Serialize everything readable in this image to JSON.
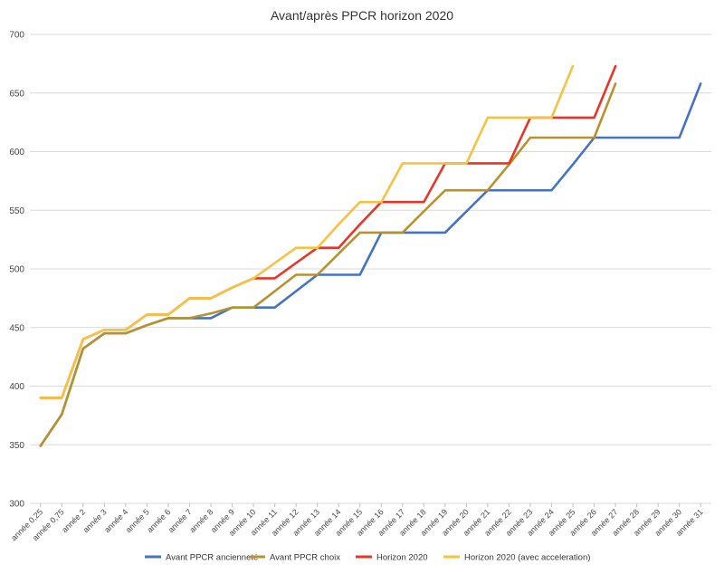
{
  "chart_data": {
    "type": "line",
    "title": "Avant/après PPCR horizon 2020",
    "xlabel": "",
    "ylabel": "",
    "ylim": [
      300,
      700
    ],
    "yticks": [
      "300",
      "350",
      "400",
      "450",
      "500",
      "550",
      "600",
      "650",
      "700"
    ],
    "grid": "horizontal",
    "legend_position": "bottom",
    "categories": [
      "année 0,25",
      "année 0,75",
      "année 2",
      "année 3",
      "année 4",
      "année 5",
      "année 6",
      "année 7",
      "année 8",
      "année 9",
      "année 10",
      "année 11",
      "année 12",
      "année 13",
      "année 14",
      "année 15",
      "année 16",
      "année 17",
      "année 18",
      "année 19",
      "année 20",
      "année 21",
      "année 22",
      "année 23",
      "année 24",
      "année 25",
      "année 26",
      "année 27",
      "année 28",
      "année 29",
      "année 30",
      "année 31"
    ],
    "series": [
      {
        "name": "Avant PPCR ancienneté",
        "color": "#4472C4",
        "values": [
          349,
          376,
          432,
          445,
          445,
          452,
          458,
          458,
          458,
          467,
          467,
          467,
          481,
          495,
          495,
          495,
          531,
          531,
          531,
          531,
          549,
          567,
          567,
          567,
          567,
          589,
          612,
          612,
          612,
          612,
          612,
          658
        ]
      },
      {
        "name": "Avant PPCR choix",
        "color": "#B8912F",
        "values": [
          349,
          376,
          432,
          445,
          445,
          452,
          458,
          458,
          462,
          467,
          467,
          481,
          495,
          495,
          513,
          531,
          531,
          531,
          549,
          567,
          567,
          567,
          589,
          612,
          612,
          612,
          612,
          658,
          null,
          null,
          null,
          null
        ]
      },
      {
        "name": "Horizon 2020",
        "color": "#E8352A",
        "values": [
          390,
          390,
          440,
          448,
          448,
          461,
          461,
          475,
          475,
          484,
          492,
          492,
          505,
          518,
          518,
          538,
          557,
          557,
          557,
          590,
          590,
          590,
          590,
          629,
          629,
          629,
          629,
          673,
          null,
          null,
          null,
          null
        ]
      },
      {
        "name": "Horizon 2020 (avec acceleration)",
        "color": "#F5C242",
        "values": [
          390,
          390,
          440,
          448,
          448,
          461,
          461,
          475,
          475,
          484,
          492,
          505,
          518,
          518,
          538,
          557,
          557,
          590,
          590,
          590,
          590,
          629,
          629,
          629,
          629,
          673,
          null,
          null,
          null,
          null,
          null,
          null
        ]
      }
    ]
  }
}
